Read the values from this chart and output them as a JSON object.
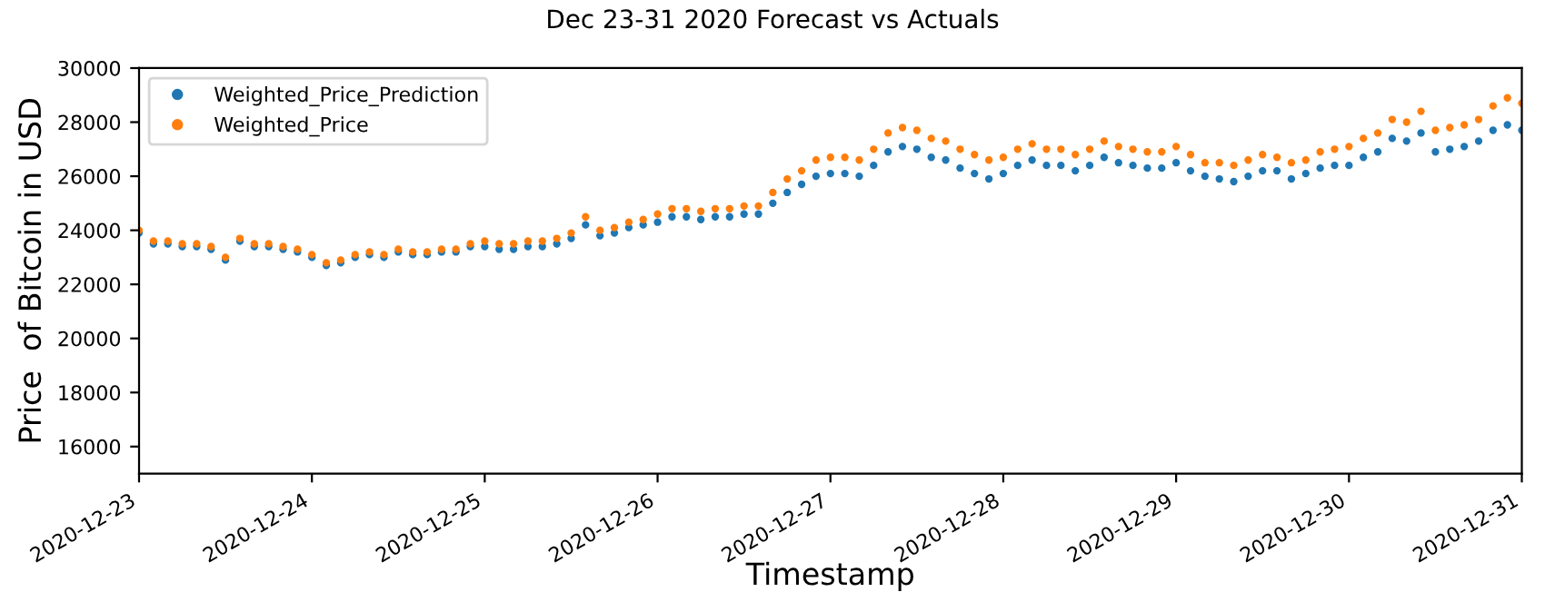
{
  "chart_data": {
    "type": "scatter",
    "title": "Dec 23-31 2020 Forecast vs Actuals",
    "xlabel": "Timestamp",
    "ylabel": "Price  of Bitcoin in USD",
    "x": [
      "2020-12-23T00:00",
      "2020-12-23T02:00",
      "2020-12-23T04:00",
      "2020-12-23T06:00",
      "2020-12-23T08:00",
      "2020-12-23T10:00",
      "2020-12-23T12:00",
      "2020-12-23T14:00",
      "2020-12-23T16:00",
      "2020-12-23T18:00",
      "2020-12-23T20:00",
      "2020-12-23T22:00",
      "2020-12-24T00:00",
      "2020-12-24T02:00",
      "2020-12-24T04:00",
      "2020-12-24T06:00",
      "2020-12-24T08:00",
      "2020-12-24T10:00",
      "2020-12-24T12:00",
      "2020-12-24T14:00",
      "2020-12-24T16:00",
      "2020-12-24T18:00",
      "2020-12-24T20:00",
      "2020-12-24T22:00",
      "2020-12-25T00:00",
      "2020-12-25T02:00",
      "2020-12-25T04:00",
      "2020-12-25T06:00",
      "2020-12-25T08:00",
      "2020-12-25T10:00",
      "2020-12-25T12:00",
      "2020-12-25T14:00",
      "2020-12-25T16:00",
      "2020-12-25T18:00",
      "2020-12-25T20:00",
      "2020-12-25T22:00",
      "2020-12-26T00:00",
      "2020-12-26T02:00",
      "2020-12-26T04:00",
      "2020-12-26T06:00",
      "2020-12-26T08:00",
      "2020-12-26T10:00",
      "2020-12-26T12:00",
      "2020-12-26T14:00",
      "2020-12-26T16:00",
      "2020-12-26T18:00",
      "2020-12-26T20:00",
      "2020-12-26T22:00",
      "2020-12-27T00:00",
      "2020-12-27T02:00",
      "2020-12-27T04:00",
      "2020-12-27T06:00",
      "2020-12-27T08:00",
      "2020-12-27T10:00",
      "2020-12-27T12:00",
      "2020-12-27T14:00",
      "2020-12-27T16:00",
      "2020-12-27T18:00",
      "2020-12-27T20:00",
      "2020-12-27T22:00",
      "2020-12-28T00:00",
      "2020-12-28T02:00",
      "2020-12-28T04:00",
      "2020-12-28T06:00",
      "2020-12-28T08:00",
      "2020-12-28T10:00",
      "2020-12-28T12:00",
      "2020-12-28T14:00",
      "2020-12-28T16:00",
      "2020-12-28T18:00",
      "2020-12-28T20:00",
      "2020-12-28T22:00",
      "2020-12-29T00:00",
      "2020-12-29T02:00",
      "2020-12-29T04:00",
      "2020-12-29T06:00",
      "2020-12-29T08:00",
      "2020-12-29T10:00",
      "2020-12-29T12:00",
      "2020-12-29T14:00",
      "2020-12-29T16:00",
      "2020-12-29T18:00",
      "2020-12-29T20:00",
      "2020-12-29T22:00",
      "2020-12-30T00:00",
      "2020-12-30T02:00",
      "2020-12-30T04:00",
      "2020-12-30T06:00",
      "2020-12-30T08:00",
      "2020-12-30T10:00",
      "2020-12-30T12:00",
      "2020-12-30T14:00",
      "2020-12-30T16:00",
      "2020-12-30T18:00",
      "2020-12-30T20:00",
      "2020-12-30T22:00",
      "2020-12-31T00:00"
    ],
    "xlim": [
      "2020-12-23",
      "2020-12-31"
    ],
    "xticks": [
      {
        "value": "2020-12-23",
        "label": "2020-12-23"
      },
      {
        "value": "2020-12-24",
        "label": "2020-12-24"
      },
      {
        "value": "2020-12-25",
        "label": "2020-12-25"
      },
      {
        "value": "2020-12-26",
        "label": "2020-12-26"
      },
      {
        "value": "2020-12-27",
        "label": "2020-12-27"
      },
      {
        "value": "2020-12-28",
        "label": "2020-12-28"
      },
      {
        "value": "2020-12-29",
        "label": "2020-12-29"
      },
      {
        "value": "2020-12-30",
        "label": "2020-12-30"
      },
      {
        "value": "2020-12-31",
        "label": "2020-12-31"
      }
    ],
    "ylim": [
      15000,
      30000
    ],
    "yticks": [
      16000,
      18000,
      20000,
      22000,
      24000,
      26000,
      28000,
      30000
    ],
    "grid": false,
    "legend": "top left",
    "marker": "circle",
    "series": [
      {
        "name": "Weighted_Price_Prediction",
        "color": "#1f77b4",
        "values": [
          23900,
          23500,
          23500,
          23400,
          23400,
          23300,
          22900,
          23600,
          23400,
          23400,
          23300,
          23200,
          23000,
          22700,
          22800,
          23000,
          23100,
          23000,
          23200,
          23100,
          23100,
          23200,
          23200,
          23400,
          23400,
          23300,
          23300,
          23400,
          23400,
          23500,
          23700,
          24200,
          23800,
          23900,
          24100,
          24200,
          24300,
          24500,
          24500,
          24400,
          24500,
          24500,
          24600,
          24600,
          25000,
          25400,
          25700,
          26000,
          26100,
          26100,
          26000,
          26400,
          26900,
          27100,
          27000,
          26700,
          26600,
          26300,
          26100,
          25900,
          26100,
          26400,
          26600,
          26400,
          26400,
          26200,
          26400,
          26700,
          26500,
          26400,
          26300,
          26300,
          26500,
          26200,
          26000,
          25900,
          25800,
          26000,
          26200,
          26200,
          25900,
          26100,
          26300,
          26400,
          26400,
          26700,
          26900,
          27400,
          27300,
          27600,
          26900,
          27000,
          27100,
          27300,
          27700,
          27900,
          27700
        ]
      },
      {
        "name": "Weighted_Price",
        "color": "#ff7f0e",
        "values": [
          24000,
          23600,
          23600,
          23500,
          23500,
          23400,
          23000,
          23700,
          23500,
          23500,
          23400,
          23300,
          23100,
          22800,
          22900,
          23100,
          23200,
          23100,
          23300,
          23200,
          23200,
          23300,
          23300,
          23500,
          23600,
          23500,
          23500,
          23600,
          23600,
          23700,
          23900,
          24500,
          24000,
          24100,
          24300,
          24400,
          24600,
          24800,
          24800,
          24700,
          24800,
          24800,
          24900,
          24900,
          25400,
          25900,
          26200,
          26600,
          26700,
          26700,
          26600,
          27000,
          27600,
          27800,
          27700,
          27400,
          27300,
          27000,
          26800,
          26600,
          26700,
          27000,
          27200,
          27000,
          27000,
          26800,
          27000,
          27300,
          27100,
          27000,
          26900,
          26900,
          27100,
          26800,
          26500,
          26500,
          26400,
          26600,
          26800,
          26700,
          26500,
          26600,
          26900,
          27000,
          27100,
          27400,
          27600,
          28100,
          28000,
          28400,
          27700,
          27800,
          27900,
          28100,
          28600,
          28900,
          28700
        ]
      }
    ]
  }
}
